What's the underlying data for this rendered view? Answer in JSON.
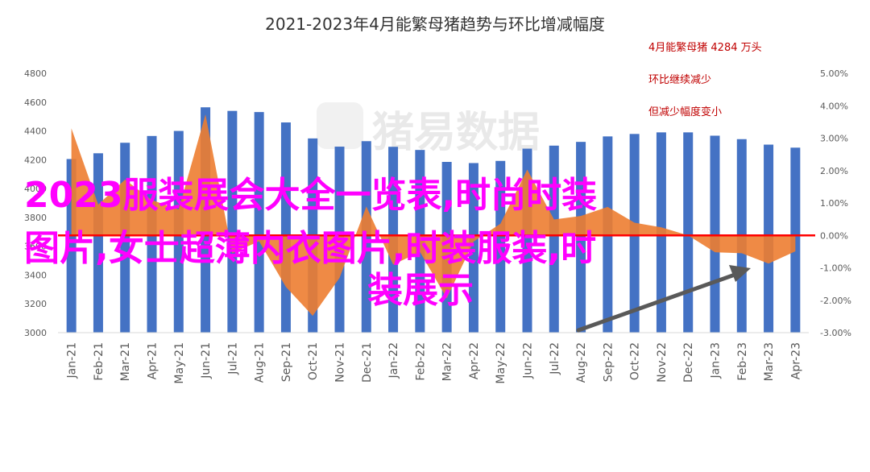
{
  "chart_data": {
    "type": "bar",
    "title": "2021-2023年4月能繁母猪趋势与环比增减幅度",
    "categories": [
      "Jan-21",
      "Feb-21",
      "Mar-21",
      "Apr-21",
      "May-21",
      "Jun-21",
      "Jul-21",
      "Aug-21",
      "Sep-21",
      "Oct-21",
      "Nov-21",
      "Dec-21",
      "Jan-22",
      "Feb-22",
      "Mar-22",
      "Apr-22",
      "May-22",
      "Jun-22",
      "Jul-22",
      "Aug-22",
      "Sep-22",
      "Oct-22",
      "Nov-22",
      "Dec-22",
      "Jan-23",
      "Feb-23",
      "Mar-23",
      "Apr-23"
    ],
    "series": [
      {
        "type": "bar",
        "axis": "left",
        "color": "#4472c4",
        "values": [
          4205,
          4245,
          4318,
          4365,
          4400,
          4564,
          4539,
          4531,
          4459,
          4348,
          4291,
          4329,
          4290,
          4268,
          4185,
          4177,
          4192,
          4277,
          4298,
          4324,
          4362,
          4379,
          4390,
          4390,
          4367,
          4343,
          4305,
          4284
        ]
      },
      {
        "type": "area",
        "axis": "right",
        "color": "#ed7d31",
        "values": [
          3.3,
          0.95,
          1.72,
          1.09,
          0.8,
          3.73,
          -0.55,
          -0.18,
          -1.59,
          -2.48,
          -1.31,
          0.89,
          -0.9,
          -0.51,
          -1.94,
          -0.19,
          0.36,
          2.03,
          0.49,
          0.6,
          0.88,
          0.39,
          0.25,
          0.0,
          -0.52,
          -0.55,
          -0.87,
          -0.49
        ]
      }
    ],
    "y_left": {
      "min": 3000,
      "max": 4800,
      "step": 200,
      "ticks": [
        "3000",
        "3200",
        "3400",
        "3600",
        "3800",
        "4000",
        "4200",
        "4400",
        "4600",
        "4800"
      ]
    },
    "y_right": {
      "min": -3,
      "max": 5,
      "step": 1,
      "ticks": [
        "-3.00%",
        "-2.00%",
        "-1.00%",
        "0.00%",
        "1.00%",
        "2.00%",
        "3.00%",
        "4.00%",
        "5.00%"
      ]
    },
    "annotations": [
      "4月能繁母猪 4284 万头",
      "环比继续减少",
      "但减少幅度变小"
    ],
    "watermark": "猪易数据",
    "overlay_text": [
      "2023服装展会大全一览表,时尚时装",
      "图片,女士超薄内衣图片,时装服装,时",
      "装展示"
    ],
    "colors": {
      "bar": "#4472c4",
      "area": "#ed7d31",
      "zero_line": "#ff0000",
      "arrow": "#595959",
      "overlay": "#ff00ff",
      "annotation": "#c00000"
    }
  }
}
